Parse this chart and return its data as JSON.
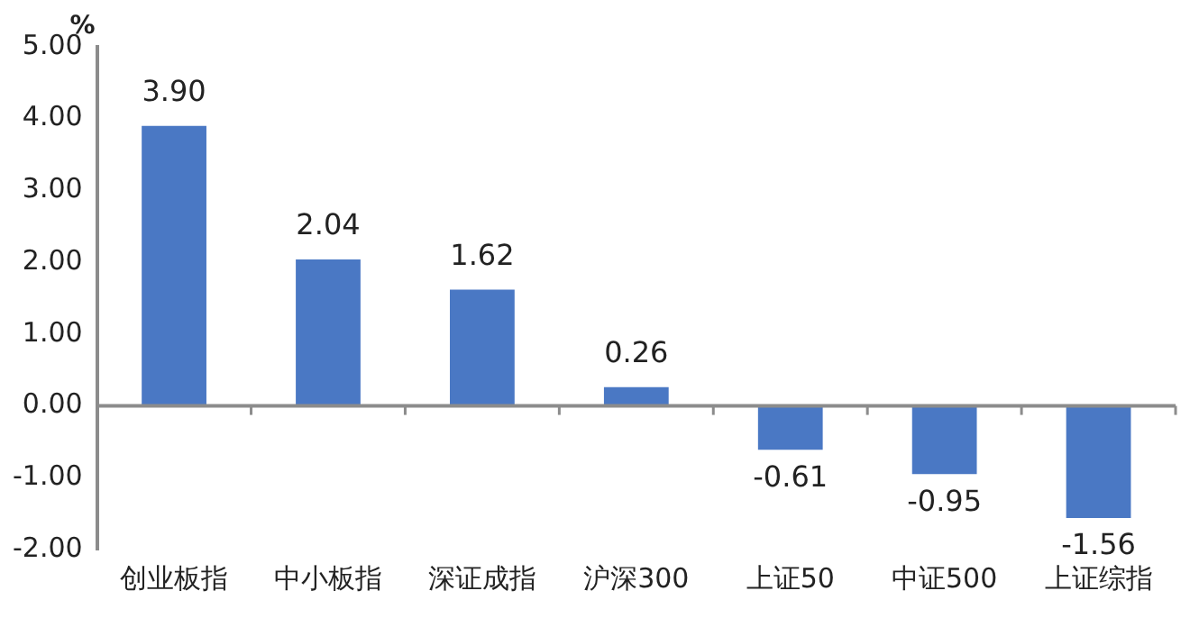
{
  "chart_data": {
    "type": "bar",
    "ylabel": "%",
    "categories": [
      "创业板指",
      "中小板指",
      "深证成指",
      "沪深300",
      "上证50",
      "中证500",
      "上证综指"
    ],
    "values": [
      3.9,
      2.04,
      1.62,
      0.26,
      -0.61,
      -0.95,
      -1.56
    ],
    "color": "#4a78c4",
    "ylim": [
      -2,
      5
    ],
    "yticks": [
      {
        "value": -2,
        "label": "-2.00"
      },
      {
        "value": -1,
        "label": "-1.00"
      },
      {
        "value": 0,
        "label": "0.00"
      },
      {
        "value": 1,
        "label": "1.00"
      },
      {
        "value": 2,
        "label": "2.00"
      },
      {
        "value": 3,
        "label": "3.00"
      },
      {
        "value": 4,
        "label": "4.00"
      },
      {
        "value": 5,
        "label": "5.00"
      }
    ],
    "value_labels": [
      "3.90",
      "2.04",
      "1.62",
      "0.26",
      "-0.61",
      "-0.95",
      "-1.56"
    ],
    "legend": false
  }
}
